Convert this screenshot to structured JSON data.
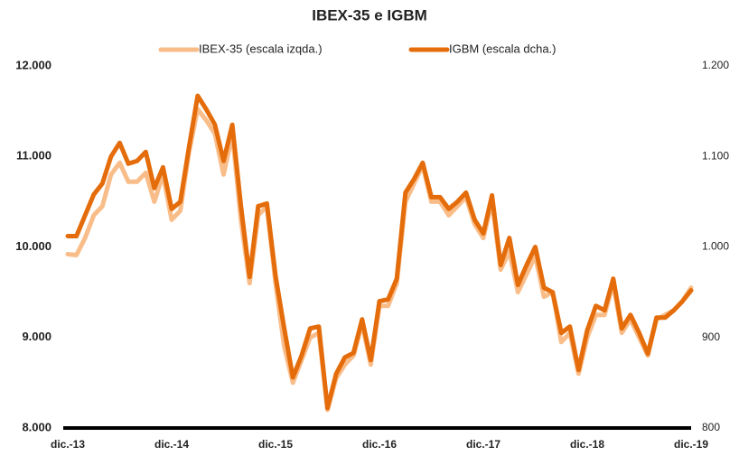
{
  "chart_data": {
    "type": "line",
    "title": "IBEX-35 e IGBM",
    "categories": [
      "dic.-13",
      null,
      null,
      null,
      null,
      null,
      null,
      null,
      null,
      null,
      null,
      null,
      "dic.-14",
      null,
      null,
      null,
      null,
      null,
      null,
      null,
      null,
      null,
      null,
      null,
      "dic.-15",
      null,
      null,
      null,
      null,
      null,
      null,
      null,
      null,
      null,
      null,
      null,
      "dic.-16",
      null,
      null,
      null,
      null,
      null,
      null,
      null,
      null,
      null,
      null,
      null,
      "dic.-17",
      null,
      null,
      null,
      null,
      null,
      null,
      null,
      null,
      null,
      null,
      null,
      "dic.-18",
      null,
      null,
      null,
      null,
      null,
      null,
      null,
      null,
      null,
      null,
      null,
      "dic.-19"
    ],
    "series": [
      {
        "name": "IBEX-35 (escala izqda.)",
        "color": "#f9bd8a",
        "values": [
          9920,
          9910,
          10100,
          10350,
          10450,
          10800,
          10930,
          10720,
          10720,
          10820,
          10500,
          10800,
          10300,
          10400,
          11050,
          11520,
          11400,
          11250,
          10800,
          11250,
          10300,
          9600,
          10350,
          10450,
          9600,
          8900,
          8500,
          8750,
          9000,
          9050,
          8200,
          8550,
          8700,
          8800,
          9150,
          8700,
          9350,
          9350,
          9600,
          10500,
          10700,
          10900,
          10500,
          10500,
          10350,
          10450,
          10550,
          10250,
          10100,
          10500,
          9750,
          9950,
          9500,
          9700,
          9900,
          9450,
          9500,
          8950,
          9050,
          8600,
          9000,
          9250,
          9250,
          9600,
          9050,
          9200,
          9000,
          8800,
          9200,
          9250,
          9300,
          9400,
          9550
        ]
      },
      {
        "name": "IGBM (escala dcha.)",
        "color": "#e46c0a",
        "axis": "y2",
        "values": [
          1012,
          1012,
          1035,
          1058,
          1070,
          1100,
          1115,
          1092,
          1095,
          1105,
          1065,
          1088,
          1042,
          1050,
          1110,
          1167,
          1152,
          1135,
          1095,
          1135,
          1045,
          967,
          1045,
          1048,
          968,
          910,
          856,
          880,
          910,
          912,
          822,
          860,
          878,
          883,
          920,
          875,
          940,
          942,
          965,
          1060,
          1075,
          1093,
          1055,
          1055,
          1042,
          1050,
          1060,
          1030,
          1015,
          1057,
          980,
          1010,
          958,
          980,
          1000,
          955,
          950,
          905,
          912,
          864,
          908,
          935,
          930,
          965,
          910,
          925,
          905,
          882,
          922,
          922,
          930,
          940,
          952
        ]
      }
    ],
    "ylim": [
      8000,
      12000
    ],
    "yticks": [
      {
        "value": 8000,
        "label": "8.000"
      },
      {
        "value": 9000,
        "label": "9.000"
      },
      {
        "value": 10000,
        "label": "10.000"
      },
      {
        "value": 11000,
        "label": "11.000"
      },
      {
        "value": 12000,
        "label": "12.000"
      }
    ],
    "y2lim": [
      800,
      1200
    ],
    "y2ticks": [
      800,
      900,
      {
        "value": 1000,
        "label": "1.000"
      },
      {
        "value": 1100,
        "label": "1.100"
      },
      {
        "value": 1200,
        "label": "1.200"
      }
    ],
    "grid": false,
    "legend": "top"
  }
}
